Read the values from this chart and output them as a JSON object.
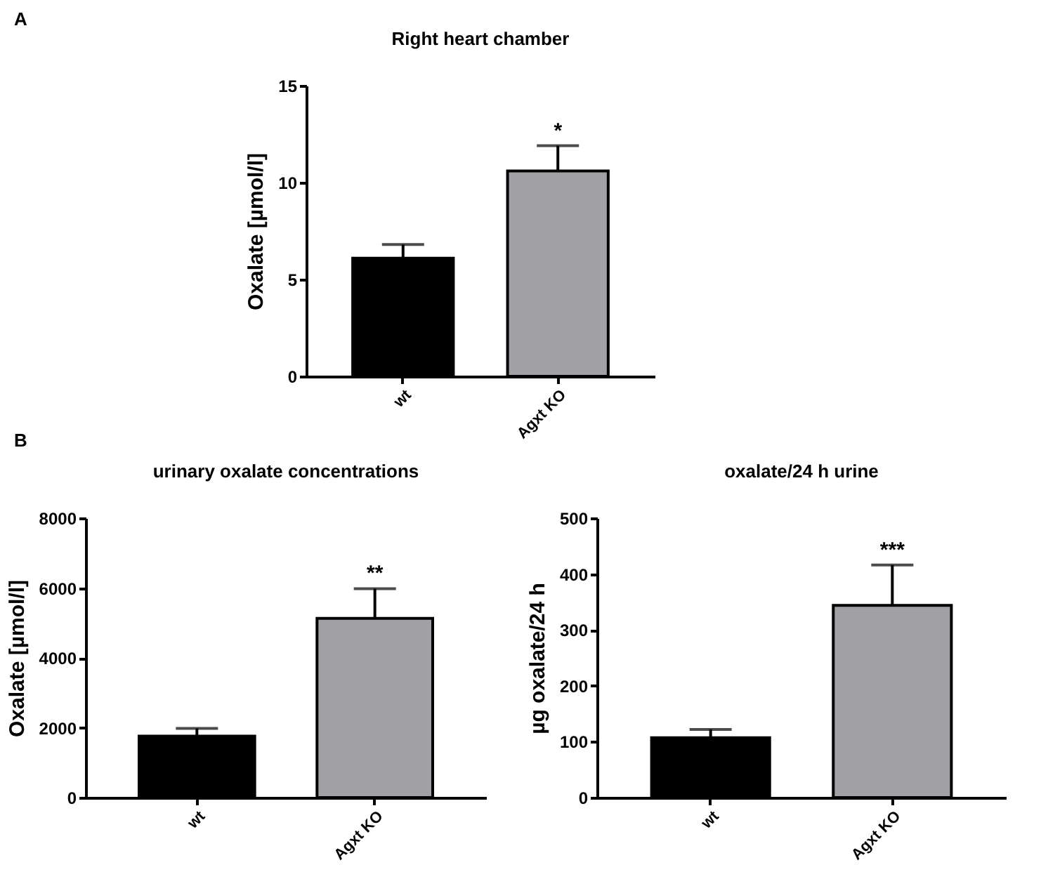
{
  "chart_data": [
    {
      "type": "bar",
      "title": "Right heart chamber",
      "ylabel": "Oxalate [µmol/l]",
      "categories": [
        "wt",
        "Agxt KO"
      ],
      "values": [
        6.1,
        10.6
      ],
      "colors": [
        "#000000",
        "#a1a1a5"
      ],
      "errors": [
        [
          6.1,
          6.8
        ],
        [
          10.6,
          11.9
        ]
      ],
      "ylim": [
        0,
        15
      ],
      "yticks": [
        0,
        5,
        10,
        15
      ],
      "grid": false,
      "legend": false,
      "annotations": [
        "A",
        {
          "text": "*",
          "x": "Agxt KO",
          "y": 11.9
        }
      ]
    },
    {
      "type": "bar",
      "title": "urinary oxalate concentrations",
      "ylabel": "Oxalate [µmol/l]",
      "categories": [
        "wt",
        "Agxt KO"
      ],
      "values": [
        1760,
        5130
      ],
      "colors": [
        "#000000",
        "#a1a1a5"
      ],
      "errors": [
        [
          1760,
          1980
        ],
        [
          5130,
          5980
        ]
      ],
      "ylim": [
        0,
        8000
      ],
      "yticks": [
        0,
        2000,
        4000,
        6000,
        8000
      ],
      "grid": false,
      "legend": false,
      "annotations": [
        "B",
        {
          "text": "**",
          "x": "Agxt KO",
          "y": 5980
        }
      ]
    },
    {
      "type": "bar",
      "title": "oxalate/24 h urine",
      "ylabel": "µg oxalate/24 h",
      "categories": [
        "wt",
        "Agxt KO"
      ],
      "values": [
        107,
        344
      ],
      "colors": [
        "#000000",
        "#a1a1a5"
      ],
      "errors": [
        [
          107,
          122
        ],
        [
          344,
          416
        ]
      ],
      "ylim": [
        0,
        500
      ],
      "yticks": [
        0,
        100,
        200,
        300,
        400,
        500
      ],
      "grid": false,
      "legend": false,
      "annotations": [
        {
          "text": "***",
          "x": "Agxt KO",
          "y": 416
        }
      ]
    }
  ]
}
